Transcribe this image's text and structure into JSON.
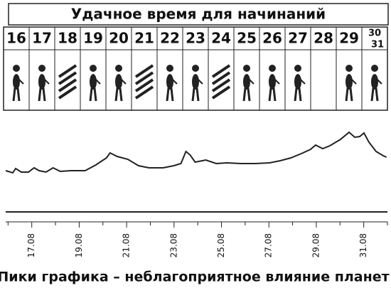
{
  "header": {
    "title": "Удачное время для начинаний"
  },
  "days": [
    "16",
    "17",
    "18",
    "19",
    "20",
    "21",
    "22",
    "23",
    "24",
    "25",
    "26",
    "27",
    "28",
    "29"
  ],
  "last_days": [
    "30",
    "31"
  ],
  "chart_data": {
    "type": "line",
    "x": [
      15.9,
      16.2,
      16.32,
      16.56,
      16.86,
      17.1,
      17.31,
      17.6,
      17.9,
      18.2,
      18.65,
      19.25,
      19.7,
      20.15,
      20.3,
      20.6,
      21.05,
      21.5,
      21.94,
      22.54,
      22.99,
      23.29,
      23.5,
      23.68,
      23.89,
      24.34,
      24.78,
      25.23,
      25.83,
      26.43,
      27.03,
      27.48,
      27.93,
      28.37,
      28.76,
      28.97,
      29.27,
      29.57,
      30.02,
      30.38,
      30.62,
      30.83,
      31.01,
      31.22,
      31.52,
      31.82,
      31.96
    ],
    "values": [
      58,
      55,
      61,
      56,
      56,
      62,
      58,
      56,
      62,
      57,
      58,
      58,
      66,
      76,
      83,
      78,
      74,
      65,
      62,
      62,
      65,
      68,
      85,
      80,
      70,
      73,
      68,
      69,
      68,
      68,
      69,
      72,
      76,
      82,
      88,
      94,
      89,
      93,
      102,
      112,
      105,
      106,
      111,
      98,
      85,
      79,
      77
    ],
    "color": "#222222",
    "xlim": [
      15.9,
      32
    ],
    "ylim": [
      0,
      120
    ],
    "xticks": [
      {
        "value": 17,
        "label": "17.08"
      },
      {
        "value": 19,
        "label": "19.08"
      },
      {
        "value": 21,
        "label": "21.08"
      },
      {
        "value": 23,
        "label": "23.08"
      },
      {
        "value": 25,
        "label": "25.08"
      },
      {
        "value": 27,
        "label": "27.08"
      },
      {
        "value": 29,
        "label": "29.08"
      },
      {
        "value": 31,
        "label": "31.08"
      }
    ],
    "x_minor_ticks": [
      16,
      18,
      20,
      22,
      24,
      26,
      28,
      30,
      32
    ],
    "caption": "Пики графика – неблагоприятное влияние планет"
  }
}
